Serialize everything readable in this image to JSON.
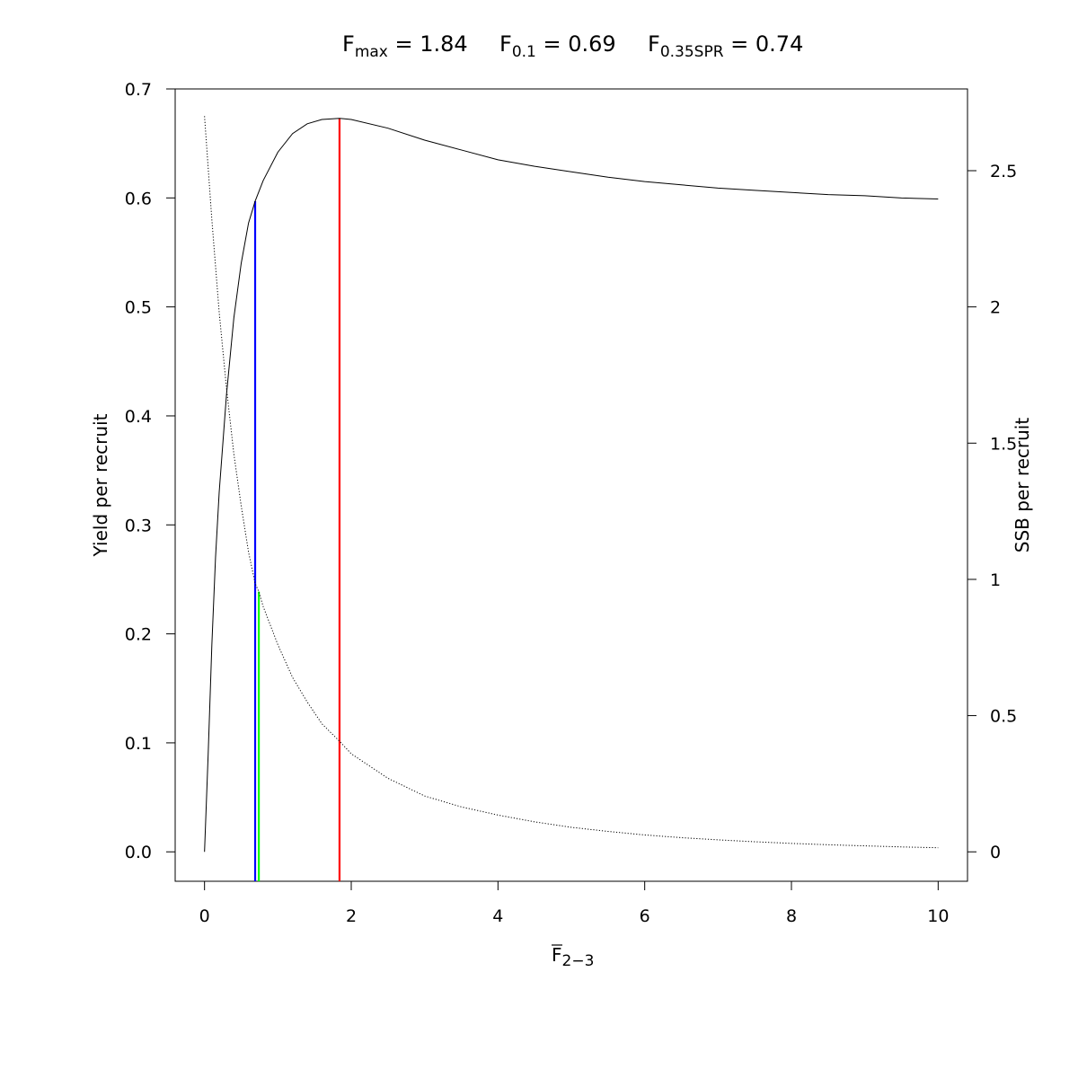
{
  "chart_data": {
    "type": "line",
    "title": {
      "fmax": {
        "base": "F",
        "sub": "max",
        "rest": " = 1.84"
      },
      "f01": {
        "base": "F",
        "sub": "0.1",
        "rest": " = 0.69"
      },
      "fspr": {
        "base": "F",
        "sub": "0.35SPR",
        "rest": " = 0.74"
      }
    },
    "xlabel": {
      "base": "F",
      "sub": "2−3"
    },
    "ylabel": "Yield per recruit",
    "y2label": "SSB per recruit",
    "xlim": [
      -0.4,
      10.4
    ],
    "ylim": [
      -0.027,
      0.7
    ],
    "y2lim": [
      -0.108,
      2.8
    ],
    "x_ticks": [
      0,
      2,
      4,
      6,
      8,
      10
    ],
    "y_ticks": [
      0.0,
      0.1,
      0.2,
      0.3,
      0.4,
      0.5,
      0.6,
      0.7
    ],
    "y_tick_labels": [
      "0.0",
      "0.1",
      "0.2",
      "0.3",
      "0.4",
      "0.5",
      "0.6",
      "0.7"
    ],
    "y2_ticks": [
      0,
      0.5,
      1,
      1.5,
      2,
      2.5
    ],
    "y2_tick_labels": [
      "0",
      "0.5",
      "1",
      "1.5",
      "2",
      "2.5"
    ],
    "series": [
      {
        "line": "solid",
        "axis": "left",
        "color": "#000000",
        "points": [
          [
            0.0,
            0.0
          ],
          [
            0.05,
            0.09
          ],
          [
            0.1,
            0.19
          ],
          [
            0.15,
            0.27
          ],
          [
            0.2,
            0.33
          ],
          [
            0.3,
            0.42
          ],
          [
            0.4,
            0.49
          ],
          [
            0.5,
            0.54
          ],
          [
            0.6,
            0.577
          ],
          [
            0.69,
            0.597
          ],
          [
            0.8,
            0.616
          ],
          [
            1.0,
            0.642
          ],
          [
            1.2,
            0.659
          ],
          [
            1.4,
            0.668
          ],
          [
            1.6,
            0.672
          ],
          [
            1.84,
            0.673
          ],
          [
            2.0,
            0.672
          ],
          [
            2.5,
            0.664
          ],
          [
            3.0,
            0.653
          ],
          [
            3.5,
            0.644
          ],
          [
            4.0,
            0.635
          ],
          [
            4.5,
            0.629
          ],
          [
            5.0,
            0.624
          ],
          [
            5.5,
            0.619
          ],
          [
            6.0,
            0.615
          ],
          [
            6.5,
            0.612
          ],
          [
            7.0,
            0.609
          ],
          [
            7.5,
            0.607
          ],
          [
            8.0,
            0.605
          ],
          [
            8.5,
            0.603
          ],
          [
            9.0,
            0.602
          ],
          [
            9.5,
            0.6
          ],
          [
            10.0,
            0.599
          ]
        ]
      },
      {
        "line": "dotted",
        "axis": "right",
        "color": "#000000",
        "points": [
          [
            0.0,
            2.7
          ],
          [
            0.1,
            2.32
          ],
          [
            0.2,
            1.98
          ],
          [
            0.3,
            1.7
          ],
          [
            0.4,
            1.46
          ],
          [
            0.5,
            1.27
          ],
          [
            0.6,
            1.1
          ],
          [
            0.69,
            0.985
          ],
          [
            0.74,
            0.955
          ],
          [
            0.8,
            0.9
          ],
          [
            1.0,
            0.76
          ],
          [
            1.2,
            0.64
          ],
          [
            1.4,
            0.55
          ],
          [
            1.6,
            0.47
          ],
          [
            1.84,
            0.406
          ],
          [
            2.0,
            0.36
          ],
          [
            2.5,
            0.27
          ],
          [
            3.0,
            0.205
          ],
          [
            3.5,
            0.165
          ],
          [
            4.0,
            0.135
          ],
          [
            4.5,
            0.11
          ],
          [
            5.0,
            0.09
          ],
          [
            5.5,
            0.075
          ],
          [
            6.0,
            0.062
          ],
          [
            6.5,
            0.052
          ],
          [
            7.0,
            0.044
          ],
          [
            7.5,
            0.037
          ],
          [
            8.0,
            0.031
          ],
          [
            8.5,
            0.026
          ],
          [
            9.0,
            0.022
          ],
          [
            9.5,
            0.018
          ],
          [
            10.0,
            0.015
          ]
        ]
      }
    ],
    "reference_lines": [
      {
        "x": 1.84,
        "y_top": 0.673,
        "axis": "left",
        "color": "#ff0000"
      },
      {
        "x": 0.69,
        "y_top": 0.597,
        "axis": "left",
        "color": "#0000ff"
      },
      {
        "x": 0.74,
        "y_top": 0.955,
        "axis": "right",
        "color": "#00ff00"
      }
    ],
    "grid": false,
    "legend": "none"
  }
}
